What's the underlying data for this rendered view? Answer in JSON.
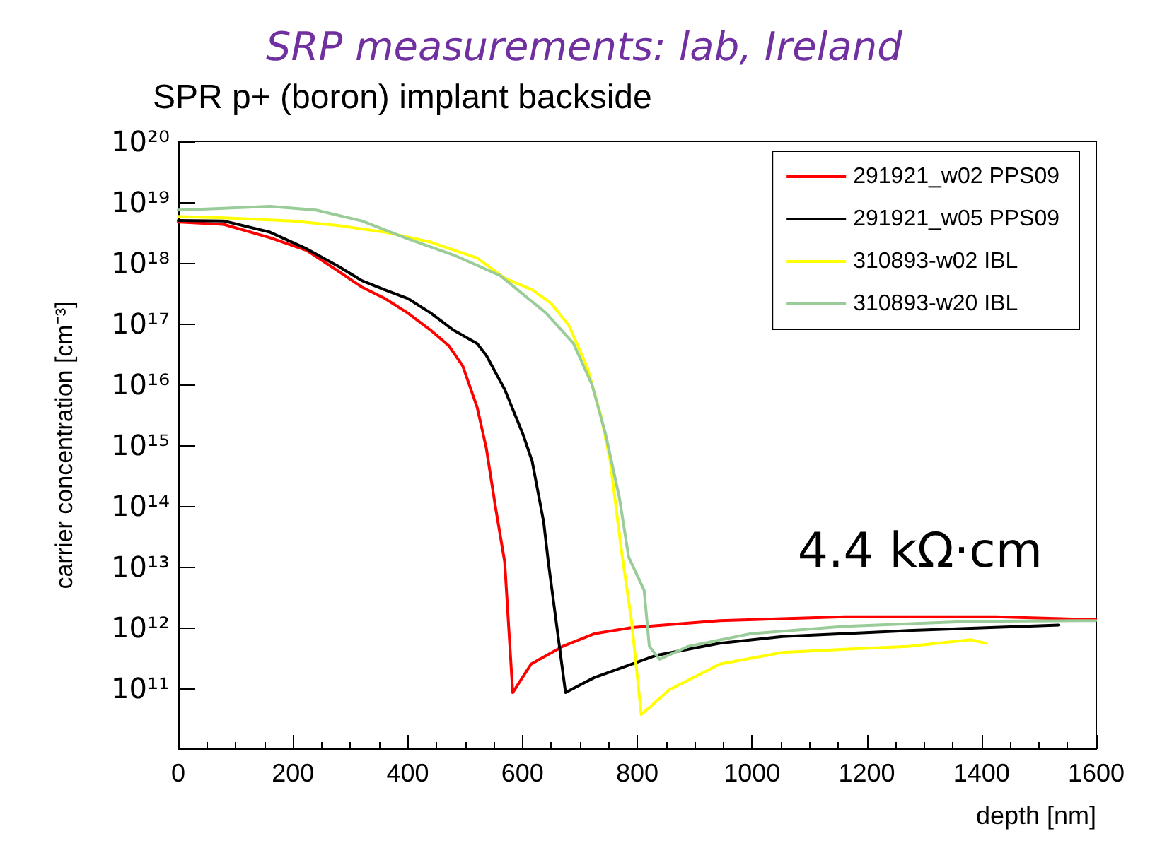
{
  "chart_data": {
    "type": "line",
    "title": "SPR p+ (boron) implant backside",
    "subtitle": "SRP measurements: lab, Ireland",
    "xlabel": "depth [nm]",
    "ylabel": "carrier concentration [cm⁻³]",
    "annotations": [
      "4.4 kΩ·cm"
    ],
    "log": "y",
    "xlim": [
      0,
      1600
    ],
    "xticks": [
      0,
      200,
      400,
      600,
      800,
      1000,
      1200,
      1400,
      1600
    ],
    "ylim": [
      10000000000.0,
      1e+20
    ],
    "yticks": [
      {
        "value": 10000000000.0,
        "label": null
      },
      {
        "value": 100000000000.0,
        "label": "10¹¹"
      },
      {
        "value": 1000000000000.0,
        "label": "10¹²"
      },
      {
        "value": 10000000000000.0,
        "label": "10¹³"
      },
      {
        "value": 100000000000000.0,
        "label": "10¹⁴"
      },
      {
        "value": 1000000000000000.0,
        "label": "10¹⁵"
      },
      {
        "value": 1e+16,
        "label": "10¹⁶"
      },
      {
        "value": 1e+17,
        "label": "10¹⁷"
      },
      {
        "value": 1e+18,
        "label": "10¹⁸"
      },
      {
        "value": 1e+19,
        "label": "10¹⁹"
      },
      {
        "value": 1e+20,
        "label": "10²⁰"
      }
    ],
    "grid": false,
    "legend": "top right",
    "marker": "none",
    "line_style": "solid",
    "series": [
      {
        "name": "291921_w02 PPS09",
        "color": "#ff0000",
        "x": [
          0,
          79,
          160,
          224,
          280,
          320,
          360,
          400,
          440,
          472,
          496,
          521,
          537,
          553,
          569,
          583,
          615,
          670,
          725,
          791,
          944,
          1162,
          1424,
          1599
        ],
        "values": [
          4.7e+18,
          4.3e+18,
          2.6e+18,
          1.6e+18,
          7.2e+17,
          4e+17,
          2.6e+17,
          1.5e+17,
          7.8e+16,
          4.3e+16,
          2e+16,
          4200000000000000.0,
          890000000000000.0,
          95000000000000.0,
          12000000000000.0,
          85000000000.0,
          250000000000.0,
          490000000000.0,
          790000000000.0,
          1000000000000.0,
          1300000000000.0,
          1500000000000.0,
          1500000000000.0,
          1350000000000.0
        ]
      },
      {
        "name": "291921_w05 PPS09",
        "color": "#000000",
        "x": [
          0,
          79,
          160,
          224,
          280,
          320,
          360,
          400,
          440,
          480,
          521,
          537,
          569,
          601,
          617,
          637,
          645,
          675,
          725,
          834,
          944,
          1053,
          1272,
          1535
        ],
        "values": [
          5e+18,
          4.9e+18,
          3.2e+18,
          1.7e+18,
          8.7e+17,
          5.1e+17,
          3.6e+17,
          2.6e+17,
          1.5e+17,
          7.8e+16,
          4.7e+16,
          3e+16,
          8300000000000000.0,
          1500000000000000.0,
          540000000000000.0,
          54000000000000.0,
          12000000000000.0,
          85000000000.0,
          150000000000.0,
          350000000000.0,
          550000000000.0,
          710000000000.0,
          890000000000.0,
          1100000000000.0
        ]
      },
      {
        "name": "310893-w02 IBL",
        "color": "#ffff00",
        "x": [
          0,
          79,
          200,
          280,
          360,
          440,
          521,
          569,
          617,
          649,
          681,
          713,
          737,
          753,
          773,
          790,
          807,
          856,
          944,
          1053,
          1162,
          1272,
          1381,
          1408
        ],
        "values": [
          5.8e+18,
          5.5e+18,
          4.9e+18,
          4.1e+18,
          3.2e+18,
          2.2e+18,
          1.2e+18,
          5.6e+17,
          3.6e+17,
          2.2e+17,
          9.3e+16,
          1.9e+16,
          3000000000000000.0,
          540000000000000.0,
          17000000000000.0,
          1300000000000.0,
          37000000000.0,
          95000000000.0,
          250000000000.0,
          390000000000.0,
          440000000000.0,
          490000000000.0,
          630000000000.0,
          550000000000.0
        ]
      },
      {
        "name": "310893-w20 IBL",
        "color": "#99cc99",
        "x": [
          0,
          79,
          160,
          240,
          320,
          400,
          480,
          561,
          641,
          689,
          721,
          745,
          769,
          785,
          812,
          821,
          839,
          889,
          998,
          1162,
          1381,
          1599
        ],
        "values": [
          7.4e+18,
          7.9e+18,
          8.5e+18,
          7.4e+18,
          4.9e+18,
          2.5e+18,
          1.35e+18,
          6.2e+17,
          1.5e+17,
          4.7e+16,
          1e+16,
          1500000000000000.0,
          135000000000000.0,
          14500000000000.0,
          4100000000000.0,
          490000000000.0,
          300000000000.0,
          490000000000.0,
          790000000000.0,
          1050000000000.0,
          1260000000000.0,
          1300000000000.0
        ]
      }
    ]
  }
}
